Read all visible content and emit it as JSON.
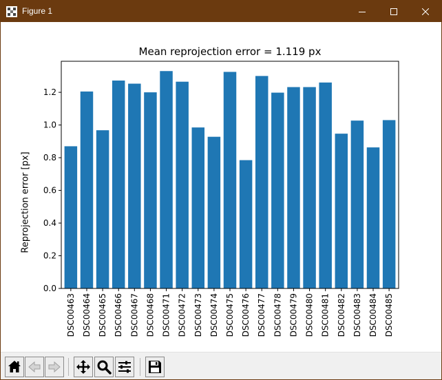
{
  "window": {
    "title": "Figure 1",
    "icons": {
      "app": "matplotlib-app-icon",
      "minimize": "minimize-icon",
      "maximize": "maximize-icon",
      "close": "close-icon"
    }
  },
  "toolbar": {
    "buttons": [
      {
        "name": "home-button",
        "icon": "home-icon"
      },
      {
        "name": "back-button",
        "icon": "arrow-left-icon"
      },
      {
        "name": "forward-button",
        "icon": "arrow-right-icon"
      },
      {
        "name": "pan-button",
        "icon": "move-icon"
      },
      {
        "name": "zoom-button",
        "icon": "magnifier-icon"
      },
      {
        "name": "configure-subplots-button",
        "icon": "sliders-icon"
      },
      {
        "name": "save-button",
        "icon": "floppy-disk-icon"
      }
    ]
  },
  "chart_data": {
    "type": "bar",
    "title": "Mean reprojection error = 1.119 px",
    "xlabel": "",
    "ylabel": "Reprojection error [px]",
    "categories": [
      "DSC00463",
      "DSC00464",
      "DSC00465",
      "DSC00466",
      "DSC00467",
      "DSC00468",
      "DSC00471",
      "DSC00472",
      "DSC00473",
      "DSC00474",
      "DSC00475",
      "DSC00476",
      "DSC00477",
      "DSC00478",
      "DSC00479",
      "DSC00480",
      "DSC00481",
      "DSC00482",
      "DSC00483",
      "DSC00484",
      "DSC00485"
    ],
    "values": [
      0.87,
      1.205,
      0.968,
      1.272,
      1.253,
      1.2,
      1.33,
      1.265,
      0.985,
      0.928,
      1.325,
      0.785,
      1.3,
      1.198,
      1.232,
      1.232,
      1.26,
      0.947,
      1.027,
      0.863,
      1.03
    ],
    "ylim": [
      0,
      1.39
    ],
    "yticks": [
      "0.0",
      "0.2",
      "0.4",
      "0.6",
      "0.8",
      "1.0",
      "1.2"
    ],
    "ytick_values": [
      0,
      0.2,
      0.4,
      0.6,
      0.8,
      1.0,
      1.2
    ],
    "bar_color": "#1f77b4",
    "grid": false,
    "legend": "none"
  }
}
